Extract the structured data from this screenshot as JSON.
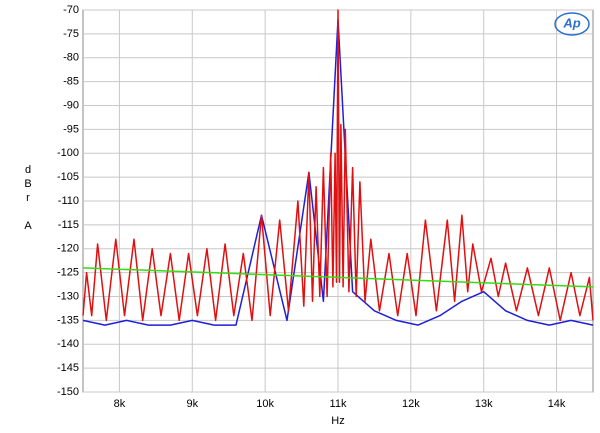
{
  "chart_data": {
    "type": "line",
    "ylabel": "dBr A",
    "xlabel": "Hz",
    "logo": "Ap",
    "xlim": [
      7500,
      14500
    ],
    "xticks": [
      {
        "value": 8000,
        "label": "8k"
      },
      {
        "value": 9000,
        "label": "9k"
      },
      {
        "value": 10000,
        "label": "10k"
      },
      {
        "value": 11000,
        "label": "11k"
      },
      {
        "value": 12000,
        "label": "12k"
      },
      {
        "value": 13000,
        "label": "13k"
      },
      {
        "value": 14000,
        "label": "14k"
      }
    ],
    "ylim": [
      -150,
      -70
    ],
    "yticks": [
      -150,
      -145,
      -140,
      -135,
      -130,
      -125,
      -120,
      -115,
      -110,
      -105,
      -100,
      -95,
      -90,
      -85,
      -80,
      -75,
      -70
    ],
    "grid": true,
    "series": [
      {
        "color": "#1f1fd8",
        "x": [
          7500,
          7800,
          8100,
          8400,
          8700,
          9000,
          9300,
          9600,
          9950,
          10300,
          10600,
          10800,
          11000,
          11200,
          11500,
          11800,
          12100,
          12400,
          12700,
          13000,
          13300,
          13600,
          13900,
          14200,
          14500
        ],
        "values": [
          -135,
          -136,
          -135,
          -136,
          -136,
          -135,
          -136,
          -136,
          -113,
          -135,
          -104,
          -131,
          -72,
          -129,
          -133,
          -135,
          -136,
          -134,
          -131,
          -129,
          -133,
          -135,
          -136,
          -135,
          -136
        ]
      },
      {
        "color": "#e01010",
        "x": [
          7500,
          7550,
          7620,
          7700,
          7820,
          7950,
          8070,
          8200,
          8320,
          8450,
          8570,
          8700,
          8820,
          8950,
          9070,
          9200,
          9320,
          9450,
          9570,
          9700,
          9820,
          9950,
          10070,
          10200,
          10320,
          10450,
          10530,
          10600,
          10650,
          10700,
          10750,
          10800,
          10850,
          10900,
          10930,
          10960,
          10980,
          11000,
          11020,
          11040,
          11070,
          11100,
          11150,
          11200,
          11250,
          11300,
          11370,
          11450,
          11570,
          11700,
          11820,
          11950,
          12070,
          12200,
          12350,
          12500,
          12600,
          12700,
          12780,
          12850,
          12970,
          13100,
          13200,
          13300,
          13450,
          13600,
          13750,
          13900,
          14050,
          14200,
          14320,
          14450,
          14500
        ],
        "values": [
          -134,
          -125,
          -134,
          -119,
          -135,
          -118,
          -134,
          -118,
          -135,
          -120,
          -134,
          -121,
          -135,
          -121,
          -134,
          -120,
          -135,
          -119,
          -134,
          -121,
          -135,
          -113,
          -134,
          -114,
          -133,
          -110,
          -132,
          -104,
          -131,
          -107,
          -130,
          -103,
          -130,
          -100,
          -128,
          -100,
          -127,
          -70,
          -127,
          -94,
          -128,
          -95,
          -129,
          -103,
          -130,
          -106,
          -131,
          -118,
          -133,
          -121,
          -134,
          -121,
          -134,
          -114,
          -133,
          -114,
          -131,
          -113,
          -129,
          -119,
          -129,
          -122,
          -130,
          -123,
          -133,
          -124,
          -134,
          -124,
          -135,
          -125,
          -134,
          -126,
          -135
        ]
      },
      {
        "color": "#33dd11",
        "x": [
          7500,
          11000,
          14500
        ],
        "values": [
          -124,
          -126,
          -128
        ]
      }
    ]
  }
}
